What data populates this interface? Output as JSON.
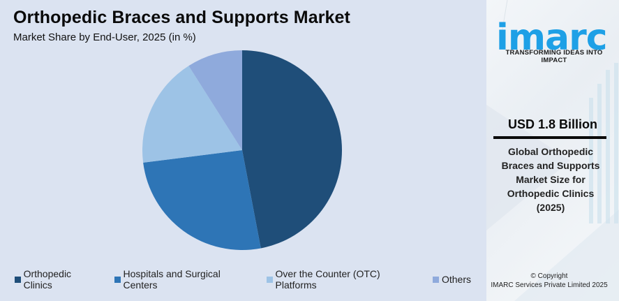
{
  "header": {
    "title": "Orthopedic Braces and Supports Market",
    "subtitle": "Market Share by End-User, 2025 (in %)"
  },
  "legend": [
    {
      "label": "Orthopedic Clinics",
      "color": "#1f4e79"
    },
    {
      "label": "Hospitals and Surgical Centers",
      "color": "#2e75b6"
    },
    {
      "label": "Over the Counter (OTC) Platforms",
      "color": "#9dc3e6"
    },
    {
      "label": "Others",
      "color": "#8faadc"
    }
  ],
  "sidebar": {
    "logo_text": "imarc",
    "tagline": "TRANSFORMING IDEAS INTO IMPACT",
    "highlight_value": "USD 1.8 Billion",
    "highlight_desc_lines": [
      "Global Orthopedic",
      "Braces and Supports",
      "Market Size for",
      "Orthopedic Clinics",
      "(2025)"
    ],
    "copyright_line1": "© Copyright",
    "copyright_line2": "IMARC Services Private Limited 2025"
  },
  "colors": {
    "background": "#dbe3f1",
    "brand": "#1ea0e6"
  },
  "chart_data": {
    "type": "pie",
    "title": "Orthopedic Braces and Supports Market",
    "subtitle": "Market Share by End-User, 2025 (in %)",
    "categories": [
      "Orthopedic Clinics",
      "Hospitals and Surgical Centers",
      "Over the Counter (OTC) Platforms",
      "Others"
    ],
    "values": [
      47,
      26,
      18,
      9
    ],
    "colors": [
      "#1f4e79",
      "#2e75b6",
      "#9dc3e6",
      "#8faadc"
    ],
    "start_angle": "12 o'clock, clockwise",
    "legend_position": "bottom",
    "data_labels": false
  }
}
